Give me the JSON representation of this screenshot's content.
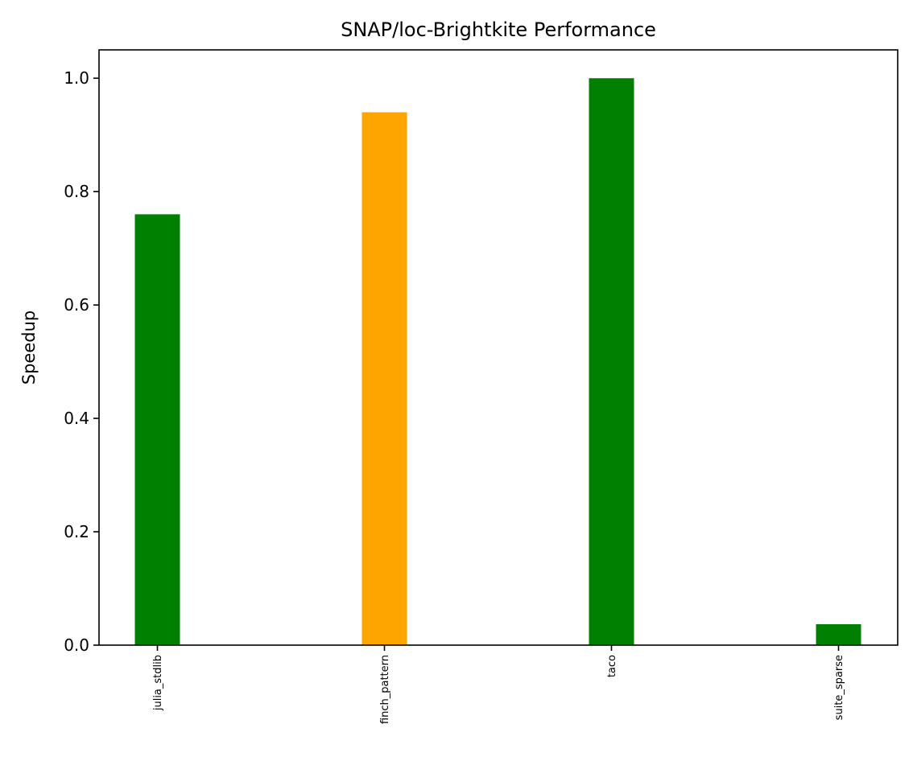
{
  "chart_data": {
    "type": "bar",
    "title": "SNAP/loc-Brightkite Performance",
    "xlabel": "",
    "ylabel": "Speedup",
    "categories": [
      "julia_stdlib",
      "finch_pattern",
      "taco",
      "suite_sparse"
    ],
    "values": [
      0.76,
      0.94,
      1.0,
      0.037
    ],
    "bar_colors": [
      "#008000",
      "#FFA500",
      "#008000",
      "#008000"
    ],
    "ylim": [
      0,
      1.05
    ],
    "yticks": [
      0.0,
      0.2,
      0.4,
      0.6,
      0.8,
      1.0
    ],
    "ytick_labels": [
      "0.0",
      "0.2",
      "0.4",
      "0.6",
      "0.8",
      "1.0"
    ],
    "grid": false,
    "legend": "none"
  }
}
